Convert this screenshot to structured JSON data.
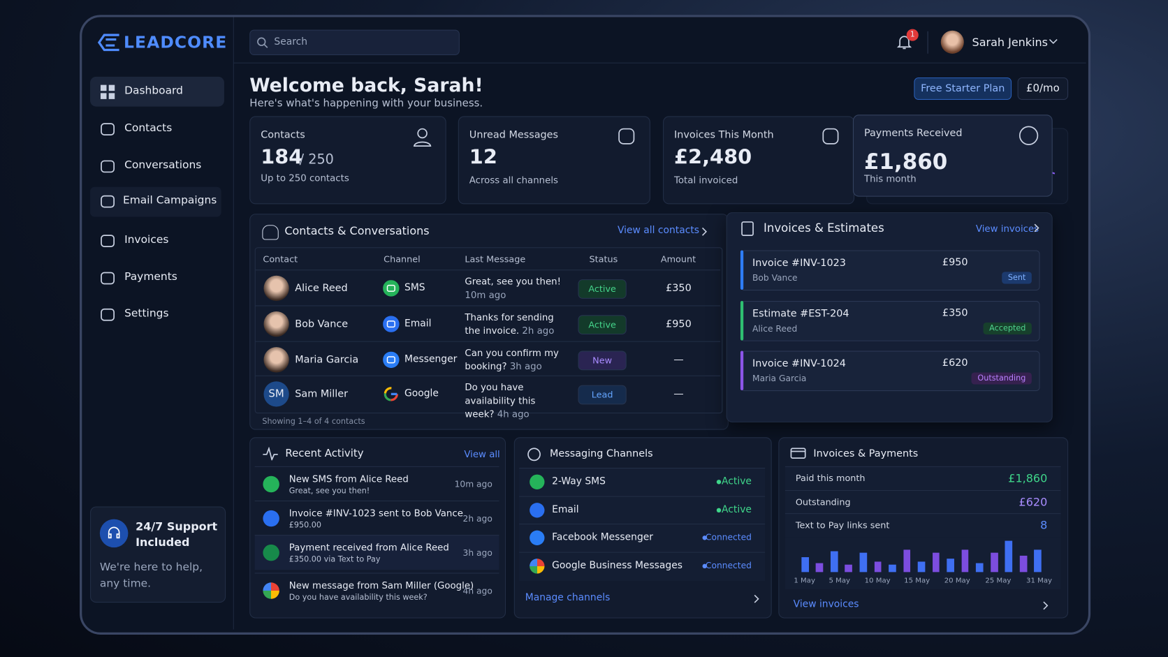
{
  "brand": "LEADCORE",
  "search": "Search",
  "notifications": "1",
  "user": "Sarah Jenkins",
  "nav": [
    "Dashboard",
    "Contacts",
    "Conversations",
    "Email Campaigns",
    "Invoices",
    "Payments",
    "Settings"
  ],
  "support": {
    "title": "24/7 Support Included",
    "text": "We're here to help, any time."
  },
  "header": {
    "title": "Welcome back, Sarah!",
    "subtitle": "Here's what's happening with your business.",
    "plan": "Free Starter Plan",
    "price": "£0/mo"
  },
  "stats": [
    {
      "label": "Contacts",
      "value": "184",
      "suffix": "/ 250",
      "note": "Up to 250 contacts"
    },
    {
      "label": "Unread Messages",
      "value": "12",
      "note": "Across all channels"
    },
    {
      "label": "Invoices This Month",
      "value": "£2,480",
      "note": "Total invoiced"
    },
    {
      "label": "Payments Received",
      "value": "£1,860",
      "note": "This month"
    }
  ],
  "contacts": {
    "title": "Contacts & Conversations",
    "link": "View all contacts",
    "columns": [
      "Contact",
      "Channel",
      "Last Message",
      "Status",
      "Amount"
    ],
    "rows": [
      {
        "name": "Alice Reed",
        "channel": "SMS",
        "message": "Great, see you then!",
        "time": "10m ago",
        "status": "Active",
        "amount": "£350"
      },
      {
        "name": "Bob Vance",
        "channel": "Email",
        "message": "Thanks for sending the invoice.",
        "time": "2h ago",
        "status": "Active",
        "amount": "£950"
      },
      {
        "name": "Maria Garcia",
        "channel": "Messenger",
        "message": "Can you confirm my booking?",
        "time": "3h ago",
        "status": "New",
        "amount": "—"
      },
      {
        "name": "Sam Miller",
        "initials": "SM",
        "channel": "Google",
        "message": "Do you have availability this week?",
        "time": "4h ago",
        "status": "Lead",
        "amount": "—"
      }
    ],
    "footer": "Showing 1–4 of 4 contacts"
  },
  "invoices": {
    "title": "Invoices & Estimates",
    "link": "View invoices",
    "items": [
      {
        "title": "Invoice #INV-1023",
        "name": "Bob Vance",
        "amount": "£950",
        "status": "Sent"
      },
      {
        "title": "Estimate #EST-204",
        "name": "Alice Reed",
        "amount": "£350",
        "status": "Accepted"
      },
      {
        "title": "Invoice #INV-1024",
        "name": "Maria Garcia",
        "amount": "£620",
        "status": "Outstanding"
      }
    ]
  },
  "activity": {
    "title": "Recent Activity",
    "link": "View all",
    "items": [
      {
        "title": "New SMS from Alice Reed",
        "sub": "Great, see you then!",
        "time": "10m ago"
      },
      {
        "title": "Invoice #INV-1023 sent to Bob Vance",
        "sub": "£950.00",
        "time": "2h ago"
      },
      {
        "title": "Payment received from Alice Reed",
        "sub": "£350.00 via Text to Pay",
        "time": "3h ago"
      },
      {
        "title": "New message from Sam Miller (Google)",
        "sub": "Do you have availability this week?",
        "time": "4h ago"
      }
    ]
  },
  "channels": {
    "title": "Messaging Channels",
    "items": [
      {
        "name": "2-Way SMS",
        "status": "Active"
      },
      {
        "name": "Email",
        "status": "Active"
      },
      {
        "name": "Facebook Messenger",
        "status": "Connected"
      },
      {
        "name": "Google Business Messages",
        "status": "Connected"
      }
    ],
    "link": "Manage channels"
  },
  "payments": {
    "title": "Invoices & Payments",
    "rows": [
      {
        "label": "Paid this month",
        "value": "£1,860"
      },
      {
        "label": "Outstanding",
        "value": "£620"
      },
      {
        "label": "Text to Pay links sent",
        "value": "8"
      }
    ],
    "chart": {
      "x_labels": [
        "1 May",
        "5 May",
        "10 May",
        "15 May",
        "20 May",
        "25 May",
        "31 May"
      ],
      "values": [
        20,
        12,
        28,
        10,
        26,
        14,
        10,
        30,
        14,
        26,
        18,
        30,
        12,
        26,
        42,
        22,
        30
      ],
      "colors": [
        "#3f6ff2",
        "#7c4ddf"
      ]
    },
    "link": "View invoices"
  }
}
